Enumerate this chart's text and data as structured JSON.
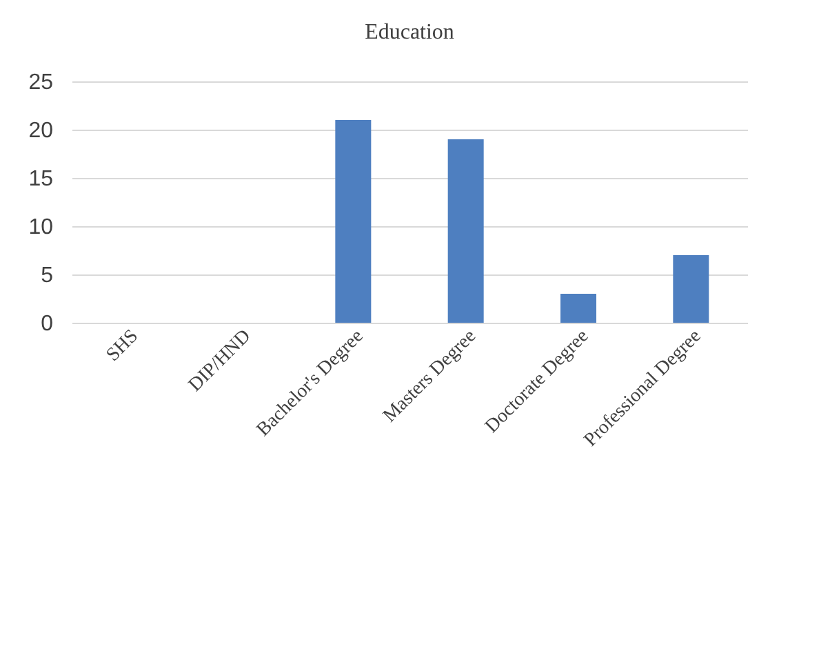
{
  "chart_data": {
    "type": "bar",
    "title": "Education",
    "categories": [
      "SHS",
      "DIP/HND",
      "Bachelor's Degree",
      "Masters Degree",
      "Doctorate Degree",
      "Professional Degree"
    ],
    "values": [
      0,
      0,
      21,
      19,
      3,
      7
    ],
    "color": "#4e7fc0",
    "ylim": [
      0,
      25
    ],
    "yticks": [
      0,
      5,
      10,
      15,
      20,
      25
    ],
    "grid": "y"
  }
}
